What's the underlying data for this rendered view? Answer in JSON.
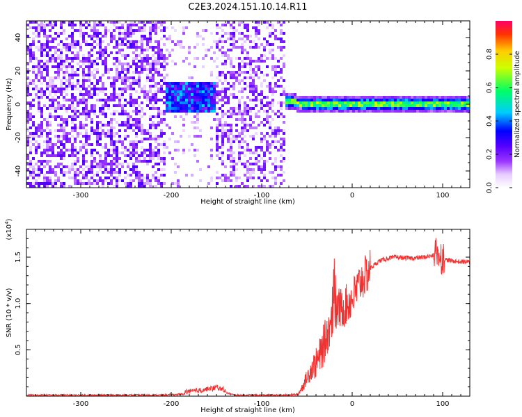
{
  "figure": {
    "title": "C2E3.2024.151.10.14.R11"
  },
  "chart_data": [
    {
      "type": "heatmap",
      "title": "",
      "xlabel": "Height of straight line (km)",
      "ylabel": "Frequency (Hz)",
      "xlim": [
        -360,
        130
      ],
      "ylim": [
        -50,
        50
      ],
      "xticks": [
        -300,
        -200,
        -100,
        0,
        100
      ],
      "xtick_labels": [
        "-300",
        "-200",
        "-100",
        "0",
        "100"
      ],
      "yticks": [
        -40,
        -20,
        0,
        20,
        40
      ],
      "ytick_labels": [
        "-40",
        "-20",
        "0",
        "20",
        "40"
      ],
      "colorbar": {
        "label": "Normalized spectral amplitude",
        "range": [
          0,
          1
        ],
        "ticks": [
          0.0,
          0.2,
          0.4,
          0.6,
          0.8
        ],
        "tick_labels": [
          "0.0",
          "0.2",
          "0.4",
          "0.6",
          "0.8"
        ],
        "colormap": [
          "#ffffff",
          "#e6ccff",
          "#9933ff",
          "#5500ff",
          "#0000ff",
          "#00ccff",
          "#00ff66",
          "#ccff00",
          "#ffcc00",
          "#ff3300",
          "#ff0066"
        ]
      },
      "regions": [
        {
          "x_range": [
            -360,
            -205
          ],
          "f_range": [
            -50,
            50
          ],
          "amplitude": 0.12,
          "pattern": "noise"
        },
        {
          "x_range": [
            -205,
            -145
          ],
          "f_range": [
            -5,
            12
          ],
          "amplitude": 0.25,
          "pattern": "burst"
        },
        {
          "x_range": [
            -150,
            -75
          ],
          "f_range": [
            -50,
            50
          ],
          "amplitude": 0.1,
          "pattern": "noise"
        },
        {
          "x_range": [
            -75,
            130
          ],
          "f_range": [
            -3,
            3
          ],
          "amplitude": 0.45,
          "pattern": "carrier"
        }
      ]
    },
    {
      "type": "line",
      "title": "",
      "xlabel": "Height of straight line (km)",
      "ylabel": "SNR (10 * v/v)",
      "y_scale_label": "(x10",
      "y_scale_exp": "4",
      "y_scale_close": ")",
      "xlim": [
        -360,
        130
      ],
      "ylim": [
        0,
        1.8
      ],
      "xticks": [
        -300,
        -200,
        -100,
        0,
        100
      ],
      "xtick_labels": [
        "-300",
        "-200",
        "-100",
        "0",
        "100"
      ],
      "yticks": [
        0.5,
        1.0,
        1.5
      ],
      "ytick_labels": [
        "0.5",
        "1.0",
        "1.5"
      ],
      "color": "#ee3333",
      "x": [
        -360,
        -300,
        -250,
        -210,
        -190,
        -175,
        -160,
        -150,
        -140,
        -130,
        -110,
        -90,
        -75,
        -60,
        -55,
        -50,
        -45,
        -40,
        -35,
        -30,
        -25,
        -20,
        -15,
        -10,
        -5,
        0,
        5,
        10,
        15,
        20,
        25,
        30,
        40,
        50,
        60,
        70,
        80,
        90,
        95,
        100,
        110,
        120,
        130
      ],
      "y": [
        0.01,
        0.01,
        0.01,
        0.01,
        0.02,
        0.03,
        0.05,
        0.07,
        0.04,
        0.01,
        0.01,
        0.01,
        0.01,
        0.02,
        0.1,
        0.2,
        0.3,
        0.35,
        0.45,
        0.6,
        0.75,
        0.85,
        0.95,
        0.95,
        1.0,
        1.05,
        1.15,
        1.25,
        1.3,
        1.38,
        1.42,
        1.46,
        1.49,
        1.5,
        1.49,
        1.49,
        1.5,
        1.52,
        1.55,
        1.48,
        1.46,
        1.45,
        1.45
      ]
    }
  ]
}
